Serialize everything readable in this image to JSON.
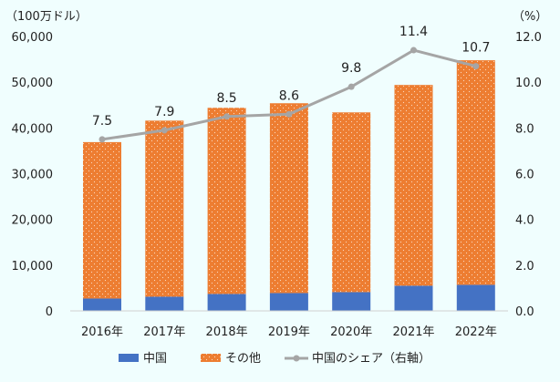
{
  "chart_data": {
    "type": "bar",
    "stacked": true,
    "left_axis_unit": "（100万ドル）",
    "right_axis_unit": "（%）",
    "categories": [
      "2016年",
      "2017年",
      "2018年",
      "2019年",
      "2020年",
      "2021年",
      "2022年"
    ],
    "ylim": [
      0,
      60000
    ],
    "y_ticks": [
      "0",
      "10,000",
      "20,000",
      "30,000",
      "40,000",
      "50,000",
      "60,000"
    ],
    "y2lim": [
      0,
      12
    ],
    "y2_ticks": [
      "0.0",
      "2.0",
      "4.0",
      "6.0",
      "8.0",
      "10.0",
      "12.0"
    ],
    "series": [
      {
        "name": "中国",
        "kind": "bar",
        "color": "#4472c4",
        "values": [
          2700,
          3100,
          3700,
          3900,
          4100,
          5500,
          5700
        ]
      },
      {
        "name": "その他",
        "kind": "bar",
        "color": "#ed7d31",
        "pattern": "dots",
        "values": [
          34200,
          38500,
          40700,
          41500,
          39300,
          43900,
          49100
        ]
      },
      {
        "name": "中国のシェア（右軸）",
        "kind": "line",
        "axis": "right",
        "color": "#a5a5a5",
        "values": [
          7.5,
          7.9,
          8.5,
          8.6,
          9.8,
          11.4,
          10.7
        ],
        "labels": [
          "7.5",
          "7.9",
          "8.5",
          "8.6",
          "9.8",
          "11.4",
          "10.7"
        ]
      }
    ],
    "grid": false,
    "legend": "bottom"
  }
}
